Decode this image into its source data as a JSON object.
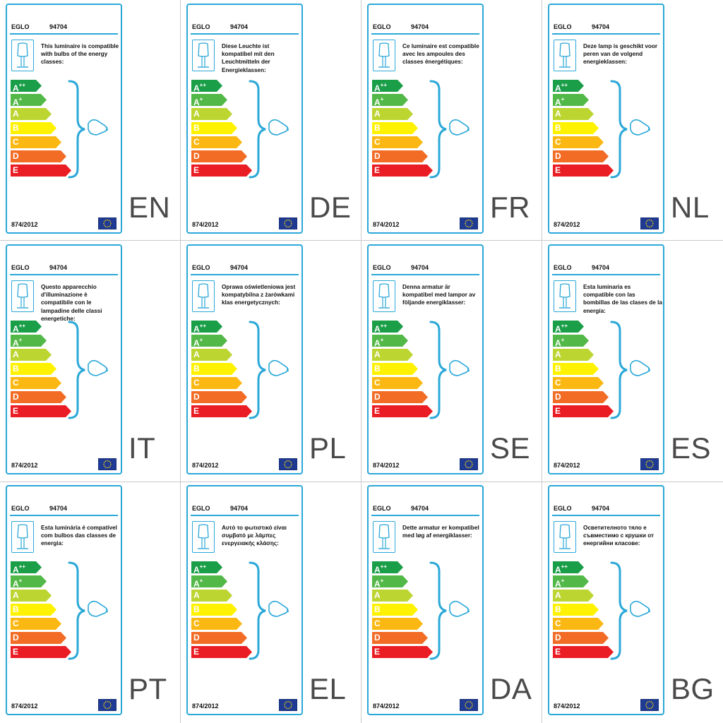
{
  "brand": "EGLO",
  "model": "94704",
  "regulation": "874/2012",
  "energy_classes": [
    {
      "letter": "A",
      "sup": "++",
      "color": "#1a9e48"
    },
    {
      "letter": "A",
      "sup": "+",
      "color": "#52b847"
    },
    {
      "letter": "A",
      "sup": "",
      "color": "#bdd531"
    },
    {
      "letter": "B",
      "sup": "",
      "color": "#fff200"
    },
    {
      "letter": "C",
      "sup": "",
      "color": "#fbb813"
    },
    {
      "letter": "D",
      "sup": "",
      "color": "#f26c25"
    },
    {
      "letter": "E",
      "sup": "",
      "color": "#ea1c24"
    }
  ],
  "accent_color": "#2ba8d8",
  "icons": {
    "luminaire": "table-lamp-icon",
    "bulb": "light-bulb-icon",
    "flag": "eu-flag-icon"
  },
  "labels": [
    {
      "lang": "EN",
      "text": "This luminaire is compatible with bulbs of the energy classes:"
    },
    {
      "lang": "DE",
      "text": "Diese Leuchte ist kompatibel mit den Leuchtmitteln der Energieklassen:"
    },
    {
      "lang": "FR",
      "text": "Ce luminaire est compatible avec les ampoules des classes énergétiques:"
    },
    {
      "lang": "NL",
      "text": "Deze lamp is geschikt voor peren van de volgend energieklassen:"
    },
    {
      "lang": "IT",
      "text": "Questo apparecchio d'illuminazione è compatibile con le lampadine delle classi energetiche:"
    },
    {
      "lang": "PL",
      "text": "Oprawa oświetleniowa jest kompatybilna z żarówkami klas energetycznych:"
    },
    {
      "lang": "SE",
      "text": "Denna armatur är kompatibel med lampor av följande energiklasser:"
    },
    {
      "lang": "ES",
      "text": "Esta luminaria es compatible con las bombillas de las clases de la energía:"
    },
    {
      "lang": "PT",
      "text": "Esta luminária é compatível com bulbos das classes de energia:"
    },
    {
      "lang": "EL",
      "text": "Αυτό το φωτιστικό είναι συμβατό με λάμπες ενεργειακής κλάσης:"
    },
    {
      "lang": "DA",
      "text": "Dette armatur er kompatibel med løg af energiklasser:"
    },
    {
      "lang": "BG",
      "text": "Осветителното тяло е съвместимо с крушки от енергийни класове:"
    }
  ]
}
